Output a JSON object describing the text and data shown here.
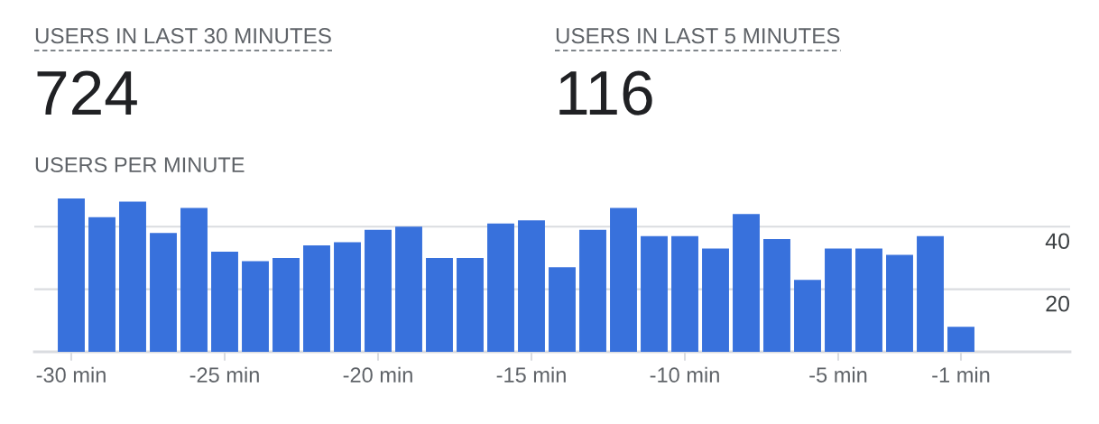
{
  "chart_data": {
    "type": "bar",
    "title": "USERS PER MINUTE",
    "annotations": [
      "USERS IN LAST 30 MINUTES",
      "724",
      "USERS IN LAST 5 MINUTES",
      "116"
    ],
    "categories": [
      "-30 min",
      null,
      null,
      null,
      null,
      "-25 min",
      null,
      null,
      null,
      null,
      "-20 min",
      null,
      null,
      null,
      null,
      "-15 min",
      null,
      null,
      null,
      null,
      "-10 min",
      null,
      null,
      null,
      null,
      "-5 min",
      null,
      null,
      null,
      "-1 min"
    ],
    "values": [
      49,
      43,
      48,
      38,
      46,
      32,
      29,
      30,
      34,
      35,
      39,
      40,
      30,
      30,
      41,
      42,
      27,
      39,
      46,
      37,
      37,
      33,
      44,
      36,
      23,
      33,
      33,
      31,
      37,
      8
    ],
    "color": "#3871dc",
    "ylim": [
      0,
      49
    ],
    "yticks": [
      {
        "value": 0,
        "label": null
      },
      20,
      40
    ],
    "grid": "y"
  }
}
